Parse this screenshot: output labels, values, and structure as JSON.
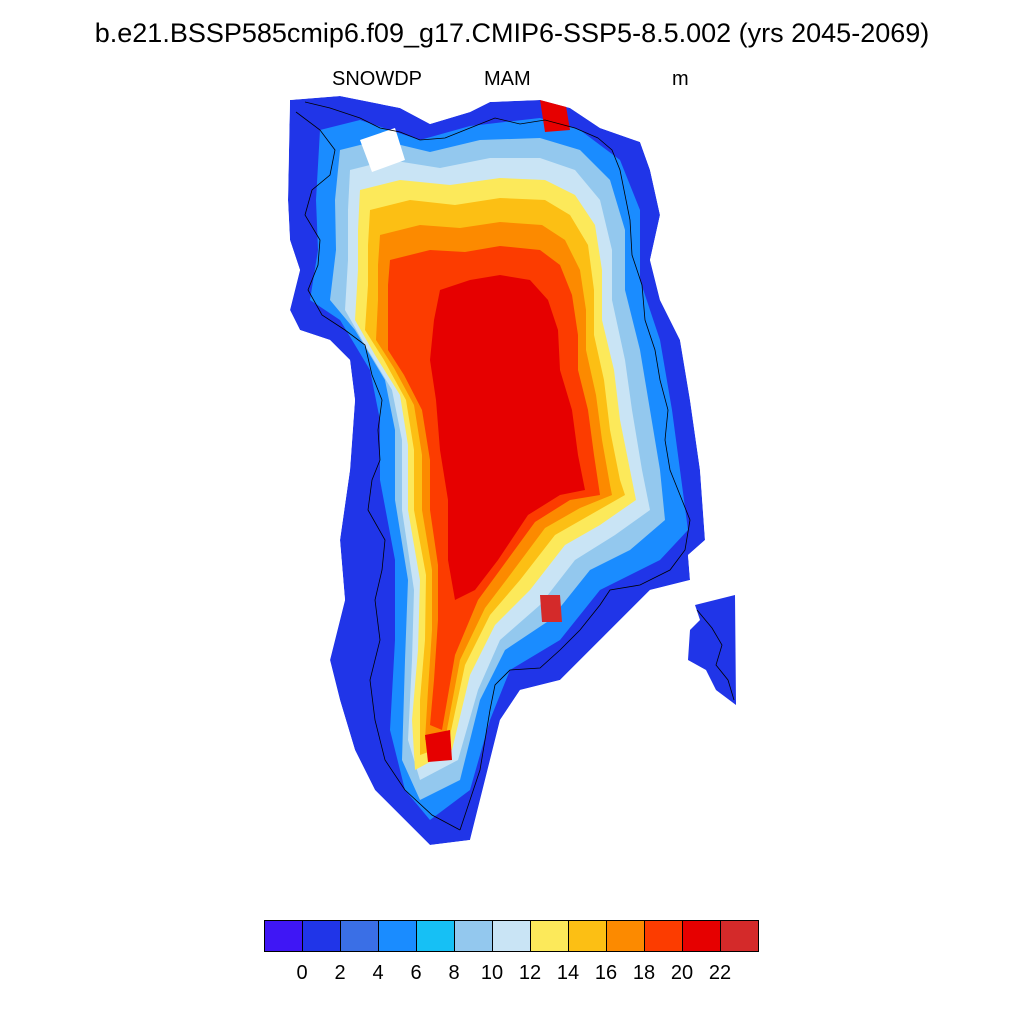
{
  "title": "b.e21.BSSP585cmip6.f09_g17.CMIP6-SSP5-8.5.002 (yrs 2045-2069)",
  "subtitle": {
    "left": "SNOWDP",
    "center": "MAM",
    "right": "m"
  },
  "colorbar": {
    "colors": [
      "#3f16f5",
      "#2035e8",
      "#3a6fe6",
      "#1a8cff",
      "#16c0f5",
      "#93c8ee",
      "#c9e4f5",
      "#fce95a",
      "#fcbf14",
      "#fc8a00",
      "#fc3c00",
      "#e60000",
      "#d42a2a"
    ],
    "labels": [
      "0",
      "2",
      "4",
      "6",
      "8",
      "10",
      "12",
      "14",
      "16",
      "18",
      "20",
      "22"
    ]
  },
  "map": {
    "region": "Greenland",
    "variable": "SNOWDP",
    "units": "m"
  }
}
